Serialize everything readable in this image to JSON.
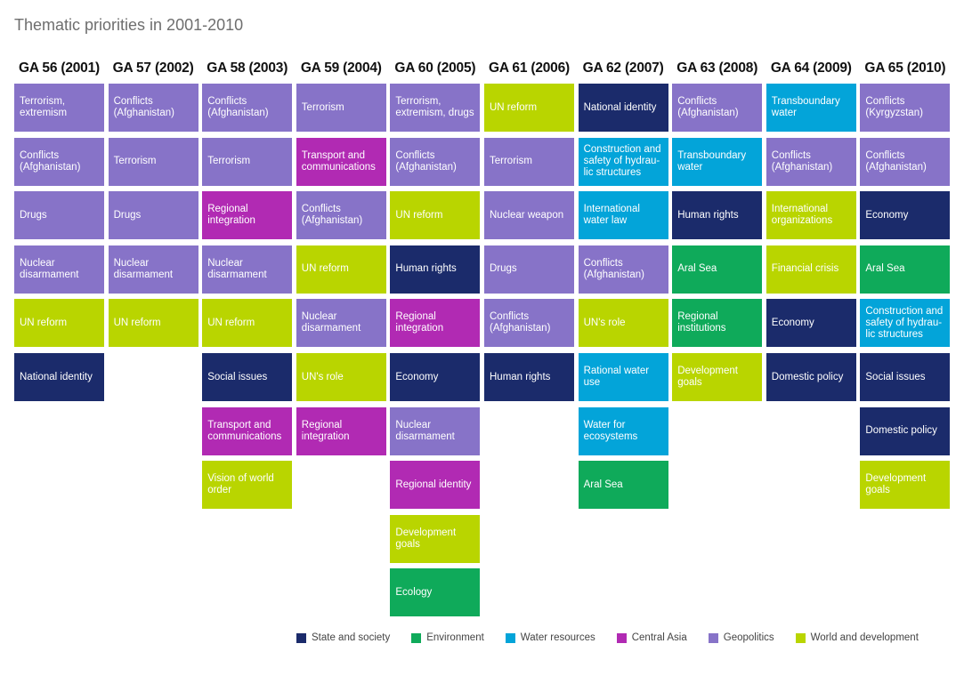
{
  "title": "Thematic priorities in 2001-2010",
  "colors": {
    "state": "#1b2b6b",
    "environment": "#0faa5a",
    "water": "#03a4d9",
    "central_asia": "#b12ab3",
    "geopolitics": "#8773c8",
    "world": "#b9d500"
  },
  "legend": [
    {
      "label": "State and society",
      "category": "state"
    },
    {
      "label": "Environment",
      "category": "environment"
    },
    {
      "label": "Water resources",
      "category": "water"
    },
    {
      "label": "Central Asia",
      "category": "central_asia"
    },
    {
      "label": "Geopolitics",
      "category": "geopolitics"
    },
    {
      "label": "World and development",
      "category": "world"
    }
  ],
  "columns": [
    {
      "header": "GA 56 (2001)",
      "items": [
        {
          "label": "Terrorism, extremism",
          "category": "geopolitics"
        },
        {
          "label": "Conflicts (Afghanistan)",
          "category": "geopolitics"
        },
        {
          "label": "Drugs",
          "category": "geopolitics"
        },
        {
          "label": "Nuclear disarmament",
          "category": "geopolitics"
        },
        {
          "label": "UN reform",
          "category": "world"
        },
        {
          "label": "National identity",
          "category": "state"
        }
      ]
    },
    {
      "header": "GA 57 (2002)",
      "items": [
        {
          "label": "Conflicts (Afghanistan)",
          "category": "geopolitics"
        },
        {
          "label": "Terrorism",
          "category": "geopolitics"
        },
        {
          "label": "Drugs",
          "category": "geopolitics"
        },
        {
          "label": "Nuclear disarmament",
          "category": "geopolitics"
        },
        {
          "label": "UN reform",
          "category": "world"
        }
      ]
    },
    {
      "header": "GA 58 (2003)",
      "items": [
        {
          "label": "Conflicts (Afghanistan)",
          "category": "geopolitics"
        },
        {
          "label": "Terrorism",
          "category": "geopolitics"
        },
        {
          "label": "Regional integration",
          "category": "central_asia"
        },
        {
          "label": "Nuclear disarmament",
          "category": "geopolitics"
        },
        {
          "label": "UN reform",
          "category": "world"
        },
        {
          "label": "Social issues",
          "category": "state"
        },
        {
          "label": "Transport and communications",
          "category": "central_asia"
        },
        {
          "label": "Vision of world order",
          "category": "world"
        }
      ]
    },
    {
      "header": "GA 59 (2004)",
      "items": [
        {
          "label": "Terrorism",
          "category": "geopolitics"
        },
        {
          "label": "Transport and communications",
          "category": "central_asia"
        },
        {
          "label": "Conflicts (Afghanistan)",
          "category": "geopolitics"
        },
        {
          "label": "UN reform",
          "category": "world"
        },
        {
          "label": "Nuclear disarmament",
          "category": "geopolitics"
        },
        {
          "label": "UN's role",
          "category": "world"
        },
        {
          "label": "Regional integration",
          "category": "central_asia"
        }
      ]
    },
    {
      "header": "GA 60 (2005)",
      "items": [
        {
          "label": "Terrorism, extremism, drugs",
          "category": "geopolitics"
        },
        {
          "label": "Conflicts (Afghanistan)",
          "category": "geopolitics"
        },
        {
          "label": "UN reform",
          "category": "world"
        },
        {
          "label": "Human rights",
          "category": "state"
        },
        {
          "label": "Regional integration",
          "category": "central_asia"
        },
        {
          "label": "Economy",
          "category": "state"
        },
        {
          "label": "Nuclear disarmament",
          "category": "geopolitics"
        },
        {
          "label": "Regional identity",
          "category": "central_asia"
        },
        {
          "label": "Development goals",
          "category": "world"
        },
        {
          "label": "Ecology",
          "category": "environment"
        }
      ]
    },
    {
      "header": "GA 61 (2006)",
      "items": [
        {
          "label": "UN reform",
          "category": "world"
        },
        {
          "label": "Terrorism",
          "category": "geopolitics"
        },
        {
          "label": "Nuclear weapon",
          "category": "geopolitics"
        },
        {
          "label": "Drugs",
          "category": "geopolitics"
        },
        {
          "label": "Conflicts (Afghanistan)",
          "category": "geopolitics"
        },
        {
          "label": "Human rights",
          "category": "state"
        }
      ]
    },
    {
      "header": "GA 62 (2007)",
      "items": [
        {
          "label": "National identity",
          "category": "state"
        },
        {
          "label": "Construction and safety of hydrau-lic structures",
          "category": "water"
        },
        {
          "label": "International water law",
          "category": "water"
        },
        {
          "label": "Conflicts (Afghanistan)",
          "category": "geopolitics"
        },
        {
          "label": "UN's role",
          "category": "world"
        },
        {
          "label": "Rational water use",
          "category": "water"
        },
        {
          "label": "Water for ecosystems",
          "category": "water"
        },
        {
          "label": "Aral Sea",
          "category": "environment"
        }
      ]
    },
    {
      "header": "GA 63 (2008)",
      "items": [
        {
          "label": "Conflicts (Afghanistan)",
          "category": "geopolitics"
        },
        {
          "label": "Transboundary water",
          "category": "water"
        },
        {
          "label": "Human rights",
          "category": "state"
        },
        {
          "label": "Aral Sea",
          "category": "environment"
        },
        {
          "label": "Regional institutions",
          "category": "environment"
        },
        {
          "label": "Development goals",
          "category": "world"
        }
      ]
    },
    {
      "header": "GA 64 (2009)",
      "items": [
        {
          "label": "Transboundary water",
          "category": "water"
        },
        {
          "label": "Conflicts (Afghanistan)",
          "category": "geopolitics"
        },
        {
          "label": "International organizations",
          "category": "world"
        },
        {
          "label": "Financial crisis",
          "category": "world"
        },
        {
          "label": "Economy",
          "category": "state"
        },
        {
          "label": "Domestic policy",
          "category": "state"
        }
      ]
    },
    {
      "header": "GA 65 (2010)",
      "items": [
        {
          "label": "Conflicts (Kyrgyzstan)",
          "category": "geopolitics"
        },
        {
          "label": "Conflicts (Afghanistan)",
          "category": "geopolitics"
        },
        {
          "label": "Economy",
          "category": "state"
        },
        {
          "label": "Aral Sea",
          "category": "environment"
        },
        {
          "label": "Construction and safety of hydrau-lic structures",
          "category": "water"
        },
        {
          "label": "Social issues",
          "category": "state"
        },
        {
          "label": "Domestic policy",
          "category": "state"
        },
        {
          "label": "Development goals",
          "category": "world"
        }
      ]
    }
  ]
}
